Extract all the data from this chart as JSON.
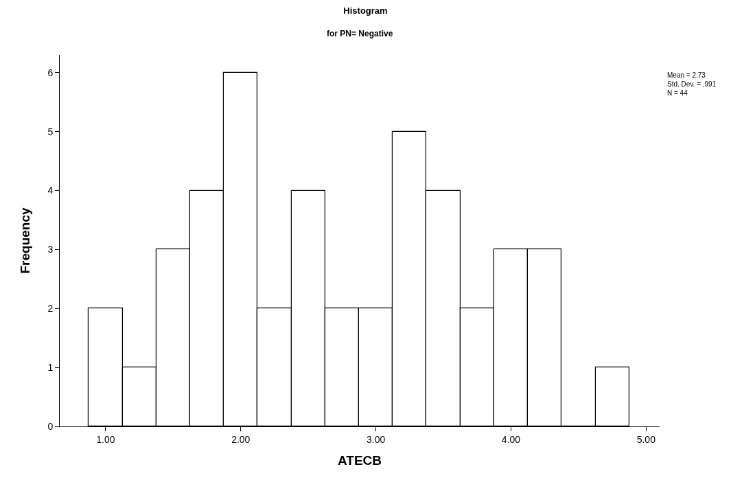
{
  "chart_data": {
    "type": "histogram",
    "title": "Histogram",
    "subtitle": "for PN= Negative",
    "xlabel": "ATECB",
    "ylabel": "Frequency",
    "bins": [
      0.875,
      1.125,
      1.375,
      1.625,
      1.875,
      2.125,
      2.375,
      2.625,
      2.875,
      3.125,
      3.375,
      3.625,
      3.875,
      4.125,
      4.375,
      4.625,
      4.875
    ],
    "values": [
      2,
      1,
      3,
      4,
      6,
      2,
      4,
      2,
      2,
      5,
      4,
      2,
      3,
      3,
      0,
      1
    ],
    "color": "#ffffff",
    "xlim": [
      0.66,
      5.1
    ],
    "xticks": [
      {
        "value": 1,
        "label": "1.00"
      },
      {
        "value": 2,
        "label": "2.00"
      },
      {
        "value": 3,
        "label": "3.00"
      },
      {
        "value": 4,
        "label": "4.00"
      },
      {
        "value": 5,
        "label": "5.00"
      }
    ],
    "ylim": [
      0,
      6.3
    ],
    "yticks": [
      0,
      1,
      2,
      3,
      4,
      5,
      6
    ],
    "annotations": [
      "Mean = 2.73\nStd. Dev. = .991\nN = 44"
    ]
  }
}
